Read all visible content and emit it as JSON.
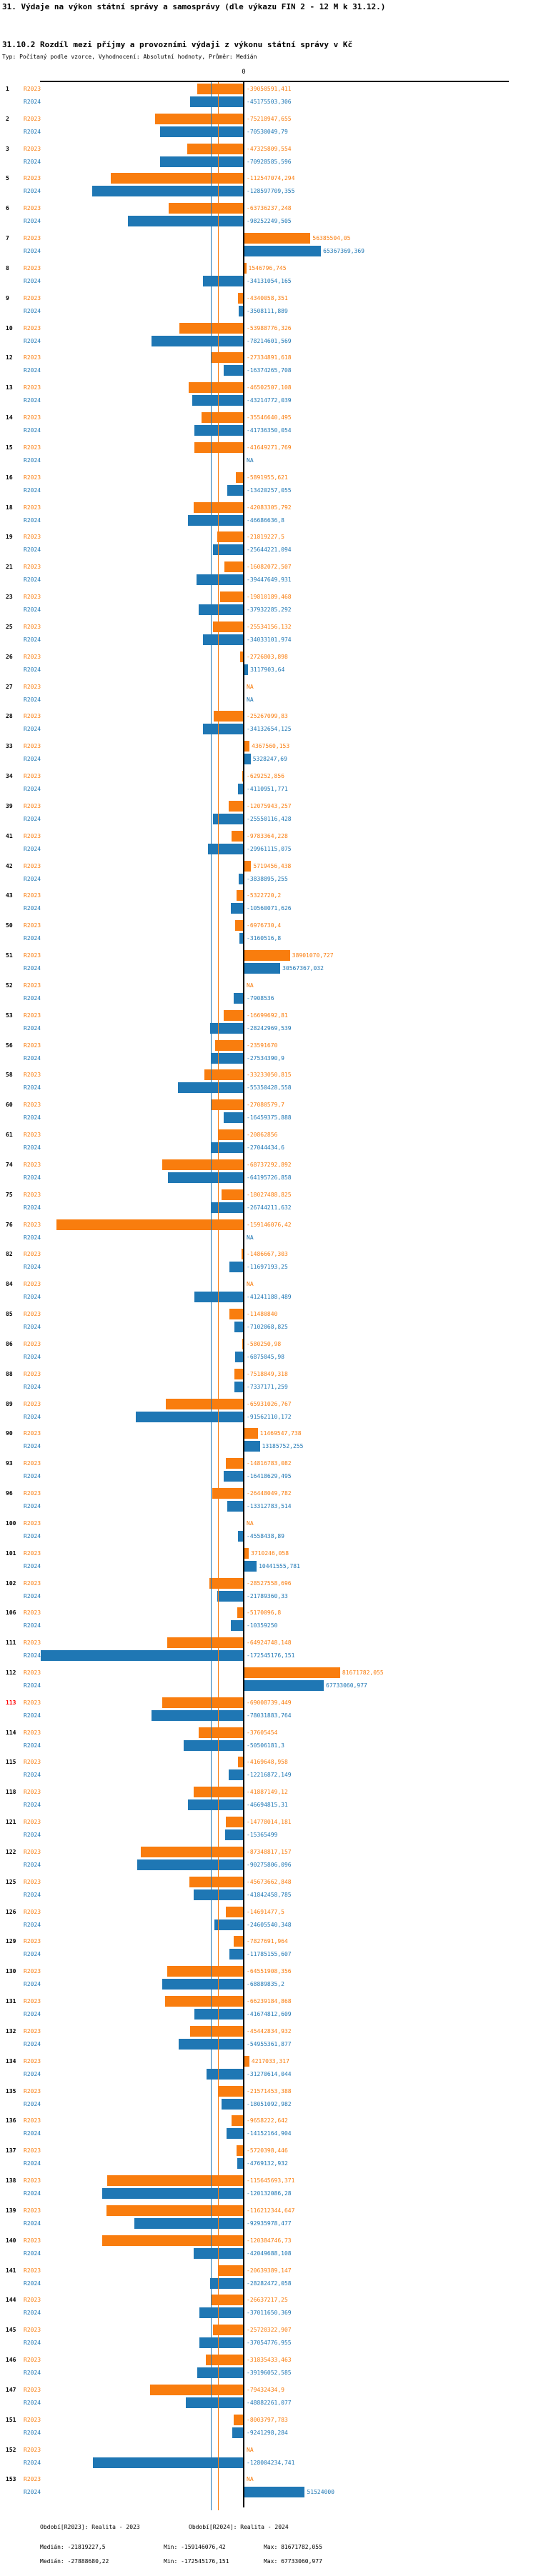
{
  "header": {
    "title": "31. Výdaje na výkon státní správy a samosprávy (dle výkazu FIN 2 - 12 M k 31.12.)",
    "subtitle": "31.10.2 Rozdíl mezi příjmy a provozními výdaji z výkonu státní správy v Kč",
    "type_line": "Typ: Počítaný podle vzorce, Vyhodnocení: Absolutní hodnoty, Průměr: Medián"
  },
  "axis": {
    "zero_label": "0"
  },
  "chart_data": {
    "type": "bar",
    "orientation": "horizontal",
    "value_unit": "Kč",
    "decimal_separator": ",",
    "na_label": "NA",
    "series_keys": [
      "R2023",
      "R2024"
    ],
    "series_colors": {
      "R2023": "#f97d0e",
      "R2024": "#1f77b4"
    },
    "xlim": [
      -174000000,
      84000000
    ],
    "grid": false,
    "zero_tick": "0",
    "medians": {
      "R2023": -21819227.5,
      "R2024": -27888680.22
    },
    "mins": {
      "R2023": -159146076.42,
      "R2024": -172545176.151
    },
    "maxs": {
      "R2023": 81671782.055,
      "R2024": 67733060.977
    },
    "highlight_row_id": "113",
    "highlight_color": "#ff0000",
    "rows": [
      {
        "id": "1",
        "values": [
          "-39050591,411",
          "-45175503,306"
        ]
      },
      {
        "id": "2",
        "values": [
          "-75218947,655",
          "-70530049,79"
        ]
      },
      {
        "id": "3",
        "values": [
          "-47325809,554",
          "-70928585,596"
        ]
      },
      {
        "id": "5",
        "values": [
          "-112547074,294",
          "-128597709,355"
        ]
      },
      {
        "id": "6",
        "values": [
          "-63736237,248",
          "-98252249,505"
        ]
      },
      {
        "id": "7",
        "values": [
          "56385504,05",
          "65367369,369"
        ]
      },
      {
        "id": "8",
        "values": [
          "1546796,745",
          "-34131054,165"
        ]
      },
      {
        "id": "9",
        "values": [
          "-4340058,351",
          "-3508111,889"
        ]
      },
      {
        "id": "10",
        "values": [
          "-53988776,326",
          "-78214601,569"
        ]
      },
      {
        "id": "12",
        "values": [
          "-27334891,618",
          "-16374265,708"
        ]
      },
      {
        "id": "13",
        "values": [
          "-46502507,108",
          "-43214772,039"
        ]
      },
      {
        "id": "14",
        "values": [
          "-35546640,495",
          "-41736350,054"
        ]
      },
      {
        "id": "15",
        "values": [
          "-41649271,769",
          "NA"
        ]
      },
      {
        "id": "16",
        "values": [
          "-5891955,621",
          "-13420257,055"
        ]
      },
      {
        "id": "18",
        "values": [
          "-42083305,792",
          "-46686636,8"
        ]
      },
      {
        "id": "19",
        "values": [
          "-21819227,5",
          "-25644221,094"
        ]
      },
      {
        "id": "21",
        "values": [
          "-16082072,507",
          "-39447649,931"
        ]
      },
      {
        "id": "23",
        "values": [
          "-19810189,468",
          "-37932285,292"
        ]
      },
      {
        "id": "25",
        "values": [
          "-25534156,132",
          "-34033101,974"
        ]
      },
      {
        "id": "26",
        "values": [
          "-2726803,898",
          "3117903,64"
        ]
      },
      {
        "id": "27",
        "values": [
          "NA",
          "NA"
        ]
      },
      {
        "id": "28",
        "values": [
          "-25267099,83",
          "-34132654,125"
        ]
      },
      {
        "id": "33",
        "values": [
          "4367560,153",
          "5328247,69"
        ]
      },
      {
        "id": "34",
        "values": [
          "-629252,856",
          "-4110951,771"
        ]
      },
      {
        "id": "39",
        "values": [
          "-12075943,257",
          "-25550116,428"
        ]
      },
      {
        "id": "41",
        "values": [
          "-9783364,228",
          "-29961115,075"
        ]
      },
      {
        "id": "42",
        "values": [
          "5719456,438",
          "-3838895,255"
        ]
      },
      {
        "id": "43",
        "values": [
          "-5322720,2",
          "-10560071,626"
        ]
      },
      {
        "id": "50",
        "values": [
          "-6976730,4",
          "-3160516,8"
        ]
      },
      {
        "id": "51",
        "values": [
          "38901070,727",
          "30567367,032"
        ]
      },
      {
        "id": "52",
        "values": [
          "NA",
          "-7908536"
        ]
      },
      {
        "id": "53",
        "values": [
          "-16699692,81",
          "-28242969,539"
        ]
      },
      {
        "id": "56",
        "values": [
          "-23591670",
          "-27534390,9"
        ]
      },
      {
        "id": "58",
        "values": [
          "-33233050,815",
          "-55350428,558"
        ]
      },
      {
        "id": "60",
        "values": [
          "-27080579,7",
          "-16459375,888"
        ]
      },
      {
        "id": "61",
        "values": [
          "-20862856",
          "-27044434,6"
        ]
      },
      {
        "id": "74",
        "values": [
          "-68737292,892",
          "-64195726,858"
        ]
      },
      {
        "id": "75",
        "values": [
          "-18027488,825",
          "-26744211,632"
        ]
      },
      {
        "id": "76",
        "values": [
          "-159146076,42",
          "NA"
        ]
      },
      {
        "id": "82",
        "values": [
          "-1486667,303",
          "-11697193,25"
        ]
      },
      {
        "id": "84",
        "values": [
          "NA",
          "-41241188,489"
        ]
      },
      {
        "id": "85",
        "values": [
          "-11480840",
          "-7102068,825"
        ]
      },
      {
        "id": "86",
        "values": [
          "-580250,98",
          "-6875045,98"
        ]
      },
      {
        "id": "88",
        "values": [
          "-7518849,318",
          "-7337171,259"
        ]
      },
      {
        "id": "89",
        "values": [
          "-65931026,767",
          "-91562110,172"
        ]
      },
      {
        "id": "90",
        "values": [
          "11469547,738",
          "13185752,255"
        ]
      },
      {
        "id": "93",
        "values": [
          "-14816783,082",
          "-16418629,495"
        ]
      },
      {
        "id": "96",
        "values": [
          "-26448049,782",
          "-13312783,514"
        ]
      },
      {
        "id": "100",
        "values": [
          "NA",
          "-4558438,89"
        ]
      },
      {
        "id": "101",
        "values": [
          "3710246,058",
          "10441555,781"
        ]
      },
      {
        "id": "102",
        "values": [
          "-28527558,696",
          "-21789360,33"
        ]
      },
      {
        "id": "106",
        "values": [
          "-5170096,8",
          "-10359250"
        ]
      },
      {
        "id": "111",
        "values": [
          "-64924748,148",
          "-172545176,151"
        ]
      },
      {
        "id": "112",
        "values": [
          "81671782,055",
          "67733060,977"
        ]
      },
      {
        "id": "113",
        "values": [
          "-69008739,449",
          "-78031883,764"
        ]
      },
      {
        "id": "114",
        "values": [
          "-37605454",
          "-50506181,3"
        ]
      },
      {
        "id": "115",
        "values": [
          "-4169648,958",
          "-12216872,149"
        ]
      },
      {
        "id": "118",
        "values": [
          "-41887149,12",
          "-46694815,31"
        ]
      },
      {
        "id": "121",
        "values": [
          "-14778014,181",
          "-15365499"
        ]
      },
      {
        "id": "122",
        "values": [
          "-87348817,157",
          "-90275806,096"
        ]
      },
      {
        "id": "125",
        "values": [
          "-45673662,848",
          "-41842458,785"
        ]
      },
      {
        "id": "126",
        "values": [
          "-14691477,5",
          "-24605540,348"
        ]
      },
      {
        "id": "129",
        "values": [
          "-7827691,964",
          "-11785155,607"
        ]
      },
      {
        "id": "130",
        "values": [
          "-64551908,356",
          "-68889835,2"
        ]
      },
      {
        "id": "131",
        "values": [
          "-66239184,868",
          "-41674812,609"
        ]
      },
      {
        "id": "132",
        "values": [
          "-45442834,932",
          "-54955361,877"
        ]
      },
      {
        "id": "134",
        "values": [
          "4217033,317",
          "-31270614,044"
        ]
      },
      {
        "id": "135",
        "values": [
          "-21571453,388",
          "-18051092,982"
        ]
      },
      {
        "id": "136",
        "values": [
          "-9658222,642",
          "-14152164,904"
        ]
      },
      {
        "id": "137",
        "values": [
          "-5720398,446",
          "-4769132,932"
        ]
      },
      {
        "id": "138",
        "values": [
          "-115645693,371",
          "-120132086,28"
        ]
      },
      {
        "id": "139",
        "values": [
          "-116212344,647",
          "-92935978,477"
        ]
      },
      {
        "id": "140",
        "values": [
          "-120384746,73",
          "-42049688,108"
        ]
      },
      {
        "id": "141",
        "values": [
          "-20639389,147",
          "-28282472,058"
        ]
      },
      {
        "id": "144",
        "values": [
          "-26637217,25",
          "-37011650,369"
        ]
      },
      {
        "id": "145",
        "values": [
          "-25720322,907",
          "-37054776,955"
        ]
      },
      {
        "id": "146",
        "values": [
          "-31835433,463",
          "-39196052,585"
        ]
      },
      {
        "id": "147",
        "values": [
          "-79432434,9",
          "-48882261,077"
        ]
      },
      {
        "id": "151",
        "values": [
          "-8003797,783",
          "-9241298,284"
        ]
      },
      {
        "id": "152",
        "values": [
          "NA",
          "-128004234,741"
        ]
      },
      {
        "id": "153",
        "values": [
          "NA",
          "51524000"
        ]
      }
    ]
  },
  "footer": {
    "legend": [
      {
        "label": "Období[R2023]: Realita - 2023"
      },
      {
        "label": "Období[R2024]: Realita - 2024"
      }
    ],
    "stats": [
      {
        "median": "Medián: -21819227,5",
        "min": "Min: -159146076,42",
        "max": "Max: 81671782,055"
      },
      {
        "median": "Medián: -27888680,22",
        "min": "Min: -172545176,151",
        "max": "Max: 67733060,977"
      }
    ]
  }
}
